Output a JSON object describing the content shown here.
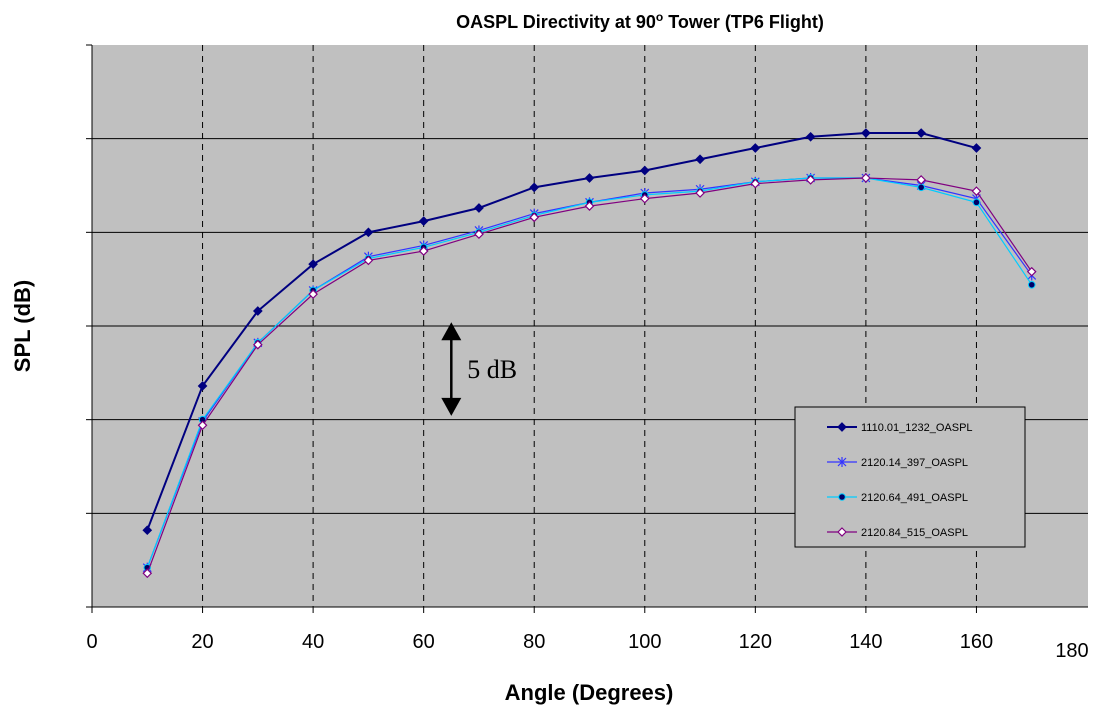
{
  "chart_data": {
    "type": "line",
    "title_main": "OASPL Directivity at 90",
    "title_superscript": "o",
    "title_rest": " Tower (TP6 Flight)",
    "xlabel": "Angle (Degrees)",
    "ylabel": "SPL (dB)",
    "xlim": [
      0,
      180
    ],
    "ylim": [
      0,
      30
    ],
    "x_ticks": [
      0,
      20,
      40,
      60,
      80,
      100,
      120,
      140,
      160
    ],
    "x_tick_labels": [
      "0",
      "20",
      "40",
      "60",
      "80",
      "100",
      "120",
      "140",
      "160"
    ],
    "x_tick_last_label": "180",
    "y_gridlines": [
      5,
      10,
      15,
      20,
      25
    ],
    "y_tick_labels_shown": false,
    "x_gridlines_dashed": [
      20,
      40,
      60,
      80,
      100,
      120,
      140,
      160
    ],
    "plot_background": "#c0c0c0",
    "legend_position": "lower-right",
    "scale_annotation": {
      "label": "5 dB",
      "x": 65,
      "y_from": 10.2,
      "y_to": 15.2
    },
    "series": [
      {
        "name": "1110.01_1232_OASPL",
        "color": "#000080",
        "marker": "diamond-filled",
        "x": [
          10,
          20,
          30,
          40,
          50,
          60,
          70,
          80,
          90,
          100,
          110,
          120,
          130,
          140,
          150,
          160
        ],
        "y": [
          4.1,
          11.8,
          15.8,
          18.3,
          20.0,
          20.6,
          21.3,
          22.4,
          22.9,
          23.3,
          23.9,
          24.5,
          25.1,
          25.3,
          25.3,
          24.5
        ]
      },
      {
        "name": "2120.14_397_OASPL",
        "color": "#3333ff",
        "marker": "star",
        "x": [
          10,
          20,
          30,
          40,
          50,
          60,
          70,
          80,
          90,
          100,
          110,
          120,
          130,
          140,
          150,
          160,
          170
        ],
        "y": [
          2.1,
          9.9,
          14.1,
          16.9,
          18.7,
          19.3,
          20.1,
          21.0,
          21.6,
          22.1,
          22.3,
          22.7,
          22.9,
          22.9,
          22.5,
          21.8,
          17.7
        ]
      },
      {
        "name": "2120.64_491_OASPL",
        "color": "#00ccff",
        "marker": "circle",
        "x": [
          10,
          20,
          30,
          40,
          50,
          60,
          70,
          80,
          90,
          100,
          110,
          120,
          130,
          140,
          150,
          160,
          170
        ],
        "y": [
          2.1,
          10.0,
          14.1,
          16.9,
          18.6,
          19.2,
          20.0,
          20.9,
          21.6,
          22.0,
          22.2,
          22.7,
          22.9,
          22.9,
          22.4,
          21.6,
          17.2
        ]
      },
      {
        "name": "2120.84_515_OASPL",
        "color": "#800080",
        "marker": "diamond-open",
        "x": [
          10,
          20,
          30,
          40,
          50,
          60,
          70,
          80,
          90,
          100,
          110,
          120,
          130,
          140,
          150,
          160,
          170
        ],
        "y": [
          1.8,
          9.7,
          14.0,
          16.7,
          18.5,
          19.0,
          19.9,
          20.8,
          21.4,
          21.8,
          22.1,
          22.6,
          22.8,
          22.9,
          22.8,
          22.2,
          17.9
        ]
      }
    ]
  }
}
